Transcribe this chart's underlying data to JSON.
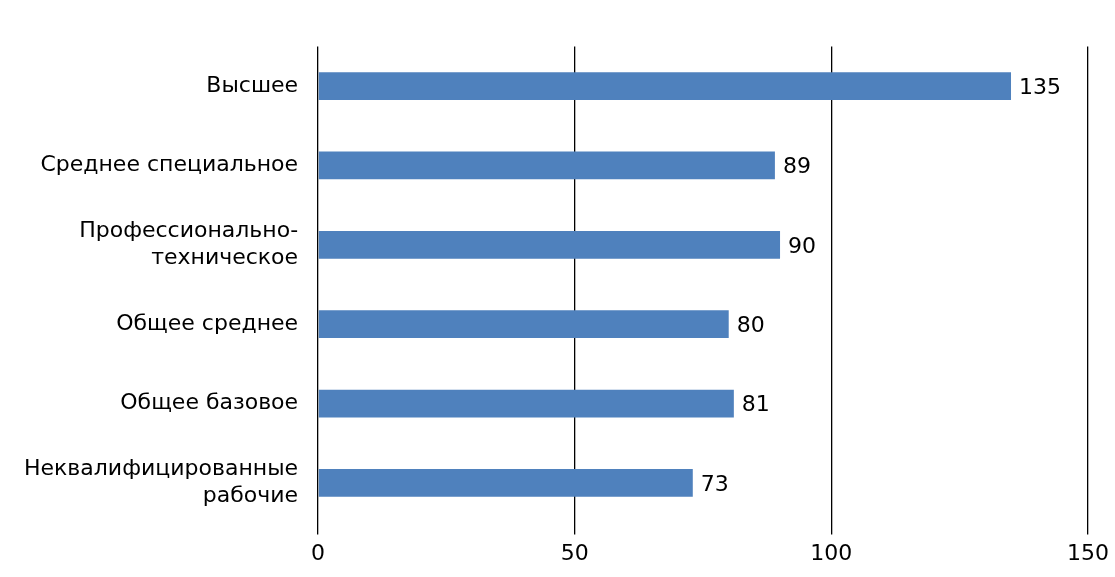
{
  "chart_data": {
    "type": "bar",
    "orientation": "horizontal",
    "categories": [
      "Высшее",
      "Среднее специальное",
      "Профессионально-техническое",
      "Общее среднее",
      "Общее базовое",
      "Неквалифицированные рабочие"
    ],
    "values": [
      135,
      89,
      90,
      80,
      81,
      73
    ],
    "color": "#4f81bd",
    "xlim": [
      0,
      150
    ],
    "xticks": [
      0,
      50,
      100,
      150
    ],
    "grid": "x",
    "data_labels": true
  }
}
